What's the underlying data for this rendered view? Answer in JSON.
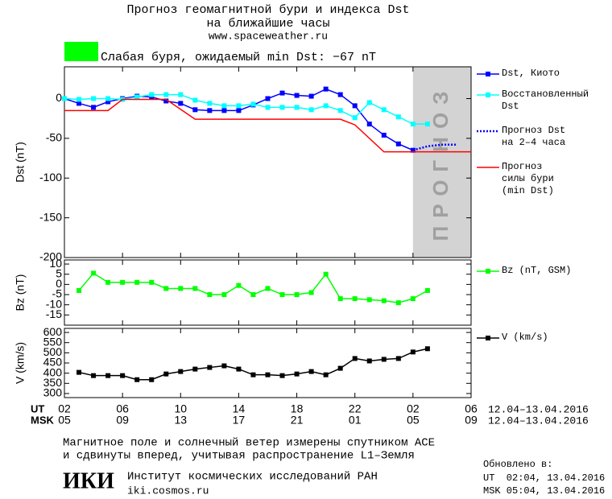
{
  "header": {
    "title": [
      "Прогноз геомагнитной бури и индекса Dst",
      "на ближайшие часы"
    ],
    "url": "www.spaceweather.ru"
  },
  "status": {
    "color": "#00ff00",
    "text": "Слабая буря, ожидаемый min Dst: −67 nT"
  },
  "chart_data": [
    {
      "type": "line",
      "ylabel": "Dst (nT)",
      "xlim": [
        2,
        30
      ],
      "ylim": [
        -200,
        40
      ],
      "yticks": [
        0,
        -50,
        -100,
        -150,
        -200
      ],
      "forecast_region": {
        "x": [
          26,
          30
        ],
        "label": "ПРОГНОЗ",
        "color": "#d3d3d3"
      },
      "series": [
        {
          "name": "Dst, Киото",
          "color": "#0000ff",
          "marker": true,
          "dash": false,
          "x": [
            2,
            3,
            4,
            5,
            6,
            7,
            8,
            9,
            10,
            11,
            12,
            13,
            14,
            15,
            16,
            17,
            18,
            19,
            20,
            21,
            22,
            23,
            24,
            25,
            26
          ],
          "values": [
            0,
            -6,
            -11,
            -4,
            0,
            3,
            2,
            -3,
            -6,
            -14,
            -15,
            -15,
            -15,
            -8,
            0,
            7,
            4,
            3,
            12,
            5,
            -9,
            -32,
            -46,
            -57,
            -65
          ]
        },
        {
          "name": "Восстановленный\nDst",
          "color": "#00ffff",
          "marker": true,
          "dash": false,
          "x": [
            2,
            3,
            4,
            5,
            6,
            7,
            8,
            9,
            10,
            11,
            12,
            13,
            14,
            15,
            16,
            17,
            18,
            19,
            20,
            21,
            22,
            23,
            24,
            25,
            26,
            27
          ],
          "values": [
            0,
            -1,
            0,
            0,
            -1,
            2,
            5,
            5,
            5,
            -2,
            -6,
            -9,
            -9,
            -7,
            -11,
            -11,
            -11,
            -14,
            -9,
            -15,
            -24,
            -5,
            -14,
            -23,
            -32,
            -32
          ]
        },
        {
          "name": "Прогноз Dst\nна 2–4 часа",
          "color": "#0000ff",
          "marker": false,
          "dash": true,
          "x": [
            26,
            27,
            28,
            29
          ],
          "values": [
            -65,
            -60,
            -58,
            -58
          ]
        },
        {
          "name": "Прогноз\nсилы бури\n(min Dst)",
          "color": "#ff0000",
          "marker": false,
          "dash": false,
          "x": [
            2,
            5,
            6,
            9,
            11,
            21,
            22,
            24,
            30
          ],
          "values": [
            -15,
            -15,
            -1,
            -1,
            -26,
            -26,
            -33,
            -67,
            -67
          ]
        }
      ]
    },
    {
      "type": "line",
      "ylabel": "Bz (nT)",
      "xlim": [
        2,
        30
      ],
      "ylim": [
        -20,
        12
      ],
      "yticks": [
        10,
        5,
        0,
        -5,
        -10,
        -15
      ],
      "series": [
        {
          "name": "Bz (nT, GSM)",
          "color": "#00ff00",
          "marker": true,
          "dash": false,
          "x": [
            3,
            4,
            5,
            6,
            7,
            8,
            9,
            10,
            11,
            12,
            13,
            14,
            15,
            16,
            17,
            18,
            19,
            20,
            21,
            22,
            23,
            24,
            25,
            26,
            27
          ],
          "values": [
            -3,
            5.5,
            1,
            1,
            1,
            1,
            -2,
            -2,
            -2,
            -5,
            -5,
            -0.5,
            -5,
            -2,
            -5,
            -5,
            -4,
            5,
            -7,
            -7,
            -7.5,
            -8,
            -9,
            -7,
            -3
          ]
        }
      ]
    },
    {
      "type": "line",
      "ylabel": "V (km/s)",
      "xlim": [
        2,
        30
      ],
      "ylim": [
        280,
        620
      ],
      "yticks": [
        600,
        550,
        500,
        450,
        400,
        350,
        300
      ],
      "xticks": [
        {
          "value": 2,
          "label": "02"
        },
        {
          "value": 6,
          "label": "06"
        },
        10,
        14,
        18,
        22,
        {
          "value": 26,
          "label": "02"
        },
        {
          "value": 30,
          "label": "06"
        }
      ],
      "x2lim": [
        5,
        33
      ],
      "x2ticks": [
        {
          "value": 5,
          "label": "05"
        },
        {
          "value": 9,
          "label": "09"
        },
        13,
        17,
        21,
        {
          "value": 25,
          "label": "01"
        },
        {
          "value": 29,
          "label": "05"
        },
        {
          "value": 33,
          "label": "09"
        }
      ],
      "xlabel": "UT",
      "x2label": "MSK",
      "xrange_label": "12.04–13.04.2016",
      "x2range_label": "12.04–13.04.2016",
      "series": [
        {
          "name": "V (km/s)",
          "color": "#000000",
          "marker": true,
          "dash": false,
          "x": [
            3,
            4,
            5,
            6,
            7,
            8,
            9,
            10,
            11,
            12,
            13,
            14,
            15,
            16,
            17,
            18,
            19,
            20,
            21,
            22,
            23,
            24,
            25,
            26,
            27
          ],
          "values": [
            404,
            388,
            388,
            388,
            368,
            368,
            396,
            408,
            420,
            428,
            436,
            420,
            392,
            392,
            388,
            396,
            408,
            392,
            424,
            472,
            460,
            468,
            472,
            504,
            520
          ]
        }
      ]
    }
  ],
  "footer": {
    "note": [
      "Магнитное поле и солнечный ветер измерены спутником ACE",
      "и сдвинуты вперед, учитывая распространение L1–Земля"
    ],
    "logo": "ИКИ",
    "institute": "Институт космических исследований РАН",
    "site": "iki.cosmos.ru",
    "updated": {
      "label": "Обновлено в:",
      "ut": "UT  02:04, 13.04.2016",
      "msk": "MSK 05:04, 13.04.2016"
    }
  }
}
